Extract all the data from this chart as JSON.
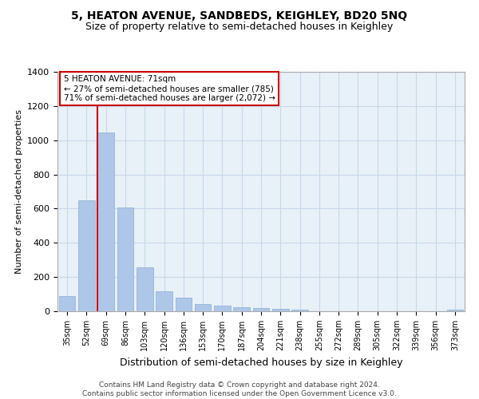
{
  "title": "5, HEATON AVENUE, SANDBEDS, KEIGHLEY, BD20 5NQ",
  "subtitle": "Size of property relative to semi-detached houses in Keighley",
  "xlabel": "Distribution of semi-detached houses by size in Keighley",
  "ylabel": "Number of semi-detached properties",
  "categories": [
    "35sqm",
    "52sqm",
    "69sqm",
    "86sqm",
    "103sqm",
    "120sqm",
    "136sqm",
    "153sqm",
    "170sqm",
    "187sqm",
    "204sqm",
    "221sqm",
    "238sqm",
    "255sqm",
    "272sqm",
    "289sqm",
    "305sqm",
    "322sqm",
    "339sqm",
    "356sqm",
    "373sqm"
  ],
  "values": [
    90,
    650,
    1047,
    605,
    255,
    118,
    80,
    40,
    33,
    23,
    18,
    15,
    8,
    0,
    0,
    0,
    0,
    0,
    0,
    0,
    10
  ],
  "bar_color": "#aec6e8",
  "vline_color": "#cc0000",
  "annotation_text": "5 HEATON AVENUE: 71sqm\n← 27% of semi-detached houses are smaller (785)\n71% of semi-detached houses are larger (2,072) →",
  "annotation_box_color": "#ffffff",
  "annotation_box_edgecolor": "#cc0000",
  "footer": "Contains HM Land Registry data © Crown copyright and database right 2024.\nContains public sector information licensed under the Open Government Licence v3.0.",
  "ylim": [
    0,
    1400
  ],
  "yticks": [
    0,
    200,
    400,
    600,
    800,
    1000,
    1200,
    1400
  ],
  "grid_color": "#c8d8e8",
  "background_color": "#e8f0f8",
  "title_fontsize": 10,
  "subtitle_fontsize": 9
}
